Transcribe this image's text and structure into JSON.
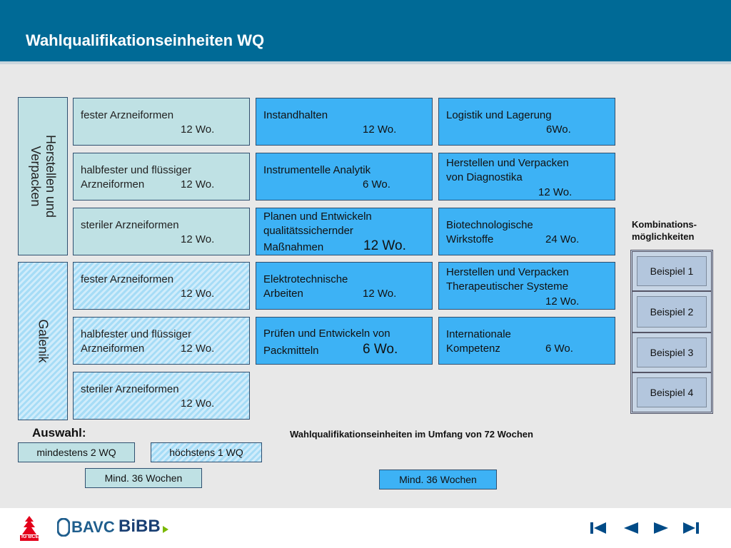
{
  "header": {
    "title": "Wahlqualifikationseinheiten WQ"
  },
  "sidebar": {
    "herstellen": "Herstellen und Verpacken",
    "galenik": "Galenik"
  },
  "col1": [
    {
      "l1": "fester Arzneiformen",
      "l2": "12 Wo."
    },
    {
      "l1": "halbfester und flüssiger",
      "l2a": "Arzneiformen",
      "l2b": "12 Wo."
    },
    {
      "l1": "steriler Arzneiformen",
      "l2": "12 Wo."
    },
    {
      "l1": "fester Arzneiformen",
      "l2": "12 Wo."
    },
    {
      "l1": "halbfester und flüssiger",
      "l2a": "Arzneiformen",
      "l2b": "12 Wo."
    },
    {
      "l1": "steriler Arzneiformen",
      "l2": "12 Wo."
    }
  ],
  "col2": [
    {
      "l1": "Instandhalten",
      "l2": "12 Wo."
    },
    {
      "l1": "Instrumentelle Analytik",
      "l2": "6 Wo."
    },
    {
      "l1": "Planen und Entwickeln",
      "l2": "qualitätssichernder",
      "l3a": "Maßnahmen",
      "l3b": "12 Wo."
    },
    {
      "l1": "Elektrotechnische",
      "l2a": "Arbeiten",
      "l2b": "12 Wo."
    },
    {
      "l1": "Prüfen und Entwickeln von",
      "l2a": "Packmitteln",
      "l2b": "6 Wo."
    }
  ],
  "col3": [
    {
      "l1": "Logistik und Lagerung",
      "l2": "6Wo."
    },
    {
      "l1": "Herstellen und Verpacken",
      "l2": "von Diagnostika",
      "l3": "12 Wo."
    },
    {
      "l1": "Biotechnologische",
      "l2a": "Wirkstoffe",
      "l2b": "24 Wo."
    },
    {
      "l1": "Herstellen und Verpacken",
      "l2": "Therapeutischer Systeme",
      "l3": "12 Wo."
    },
    {
      "l1": "Internationale",
      "l2a": "Kompetenz",
      "l2b": "6 Wo."
    }
  ],
  "combos": {
    "heading_l1": "Kombinations-",
    "heading_l2": "möglichkeiten",
    "items": [
      "Beispiel 1",
      "Beispiel 2",
      "Beispiel 3",
      "Beispiel 4"
    ]
  },
  "auswahl": {
    "label": "Auswahl:",
    "min_wq": "mindestens  2 WQ",
    "max_wq": "höchstens 1 WQ",
    "min_weeks_left": "Mind. 36 Wochen",
    "summary": "Wahlqualifikationseinheiten im Umfang von 72 Wochen",
    "min_weeks_right": "Mind. 36 Wochen"
  },
  "footer": {
    "logo_bce": "IG BCE",
    "logo_bavc": "BAVC",
    "logo_bibb": "BiBB"
  },
  "colors": {
    "header": "#006a96",
    "tile_light": "#bfe1e4",
    "tile_blue": "#3db2f5",
    "hatch": "#a6dcf6"
  }
}
